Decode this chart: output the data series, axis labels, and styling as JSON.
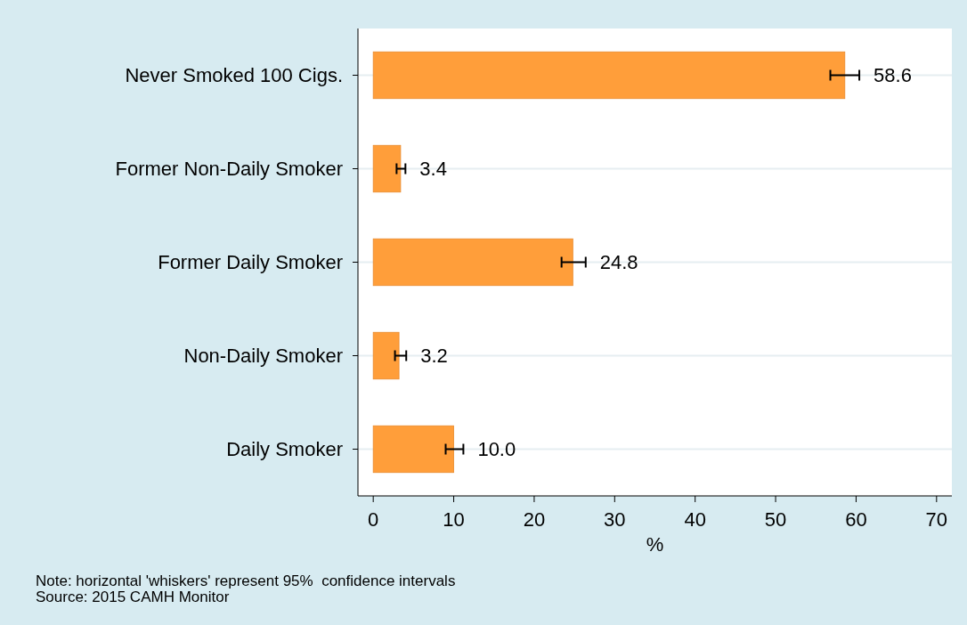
{
  "chart_data": {
    "type": "bar",
    "orientation": "horizontal",
    "xlabel": "%",
    "categories": [
      "Never Smoked 100 Cigs.",
      "Former Non-Daily Smoker",
      "Former Daily Smoker",
      "Non-Daily Smoker",
      "Daily Smoker"
    ],
    "values": [
      58.6,
      3.4,
      24.8,
      3.2,
      10.0
    ],
    "errors": [
      [
        56.8,
        60.4
      ],
      [
        2.9,
        4.0
      ],
      [
        23.4,
        26.4
      ],
      [
        2.7,
        4.1
      ],
      [
        9.0,
        11.2
      ]
    ],
    "color": "#ff9e3a",
    "xlim": [
      -1.9,
      71.9
    ],
    "xticks": [
      0,
      10,
      20,
      30,
      40,
      50,
      60,
      70
    ],
    "grid": "y",
    "value_labels": [
      "58.6",
      "3.4",
      "24.8",
      "3.2",
      "10.0"
    ],
    "annotations": [
      "Note: horizontal 'whiskers' represent 95%  confidence intervals",
      "Source: 2015 CAMH Monitor"
    ]
  }
}
